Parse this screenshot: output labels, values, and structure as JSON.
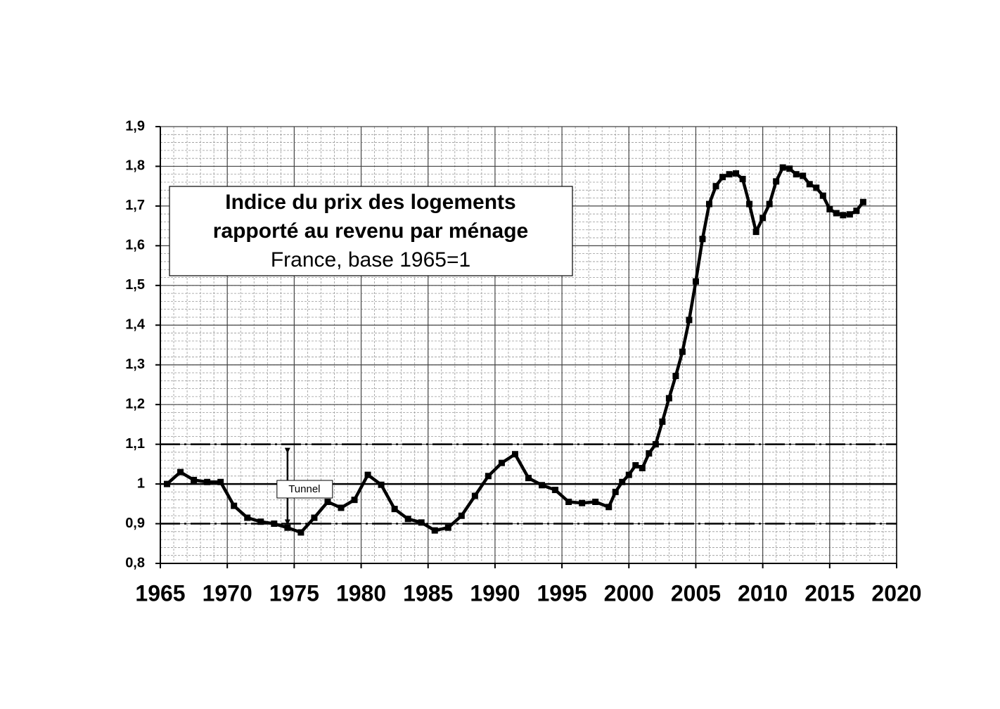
{
  "chart_data": {
    "type": "line",
    "title": [
      "Indice du prix des logements",
      "rapporté au revenu par ménage"
    ],
    "subtitle": "France, base 1965=1",
    "x": [
      1965.5,
      1966.5,
      1967.5,
      1968.5,
      1969.5,
      1970.5,
      1971.5,
      1972.5,
      1973.5,
      1974.5,
      1975.5,
      1976.5,
      1977.5,
      1978.5,
      1979.5,
      1980.5,
      1981.5,
      1982.5,
      1983.5,
      1984.5,
      1985.5,
      1986.5,
      1987.5,
      1988.5,
      1989.5,
      1990.5,
      1991.5,
      1992.5,
      1993.5,
      1994.5,
      1995.5,
      1996.5,
      1997.5,
      1998.5,
      1999.0,
      1999.5,
      2000.0,
      2000.5,
      2001.0,
      2001.5,
      2002.0,
      2002.5,
      2003.0,
      2003.5,
      2004.0,
      2004.5,
      2005.0,
      2005.5,
      2006.0,
      2006.5,
      2007.0,
      2007.5,
      2008.0,
      2008.5,
      2009.0,
      2009.5,
      2010.0,
      2010.5,
      2011.0,
      2011.5,
      2012.0,
      2012.5,
      2013.0,
      2013.5,
      2014.0,
      2014.5,
      2015.0,
      2015.5,
      2016.0,
      2016.5,
      2017.0,
      2017.5
    ],
    "values": [
      1.0,
      1.03,
      1.01,
      1.005,
      1.005,
      0.945,
      0.915,
      0.905,
      0.9,
      0.89,
      0.878,
      0.915,
      0.955,
      0.94,
      0.96,
      1.023,
      0.998,
      0.937,
      0.912,
      0.903,
      0.883,
      0.89,
      0.92,
      0.97,
      1.02,
      1.053,
      1.075,
      1.015,
      0.997,
      0.985,
      0.955,
      0.952,
      0.955,
      0.942,
      0.98,
      1.005,
      1.023,
      1.047,
      1.04,
      1.077,
      1.1,
      1.157,
      1.216,
      1.272,
      1.333,
      1.413,
      1.51,
      1.617,
      1.705,
      1.75,
      1.773,
      1.78,
      1.782,
      1.768,
      1.705,
      1.635,
      1.67,
      1.705,
      1.762,
      1.797,
      1.794,
      1.78,
      1.776,
      1.755,
      1.746,
      1.726,
      1.692,
      1.682,
      1.677,
      1.679,
      1.688,
      1.71
    ],
    "color": "#000000",
    "xlim": [
      1965,
      2020
    ],
    "xticks": [
      1965,
      1970,
      1975,
      1980,
      1985,
      1990,
      1995,
      2000,
      2005,
      2010,
      2015,
      2020
    ],
    "ylim": [
      0.8,
      1.9
    ],
    "yticks": [
      {
        "value": 0.8,
        "label": "0,8"
      },
      {
        "value": 0.9,
        "label": "0,9"
      },
      1,
      {
        "value": 1.1,
        "label": "1,1"
      },
      {
        "value": 1.2,
        "label": "1,2"
      },
      {
        "value": 1.3,
        "label": "1,3"
      },
      {
        "value": 1.4,
        "label": "1,4"
      },
      {
        "value": 1.5,
        "label": "1,5"
      },
      {
        "value": 1.6,
        "label": "1,6"
      },
      {
        "value": 1.7,
        "label": "1,7"
      },
      {
        "value": 1.8,
        "label": "1,8"
      },
      {
        "value": 1.9,
        "label": "1,9"
      }
    ],
    "grid": true,
    "minor_grid": {
      "x": 1,
      "y": 0.02
    },
    "hlines": [
      {
        "value": 1.1,
        "style": "dashdot"
      },
      {
        "value": 1,
        "style": "solid"
      },
      {
        "value": 0.9,
        "style": "dashdot"
      }
    ],
    "annotation": {
      "text": "Tunnel",
      "x": 1974.5,
      "y_from": 0.9,
      "y_to": 1.1
    }
  }
}
